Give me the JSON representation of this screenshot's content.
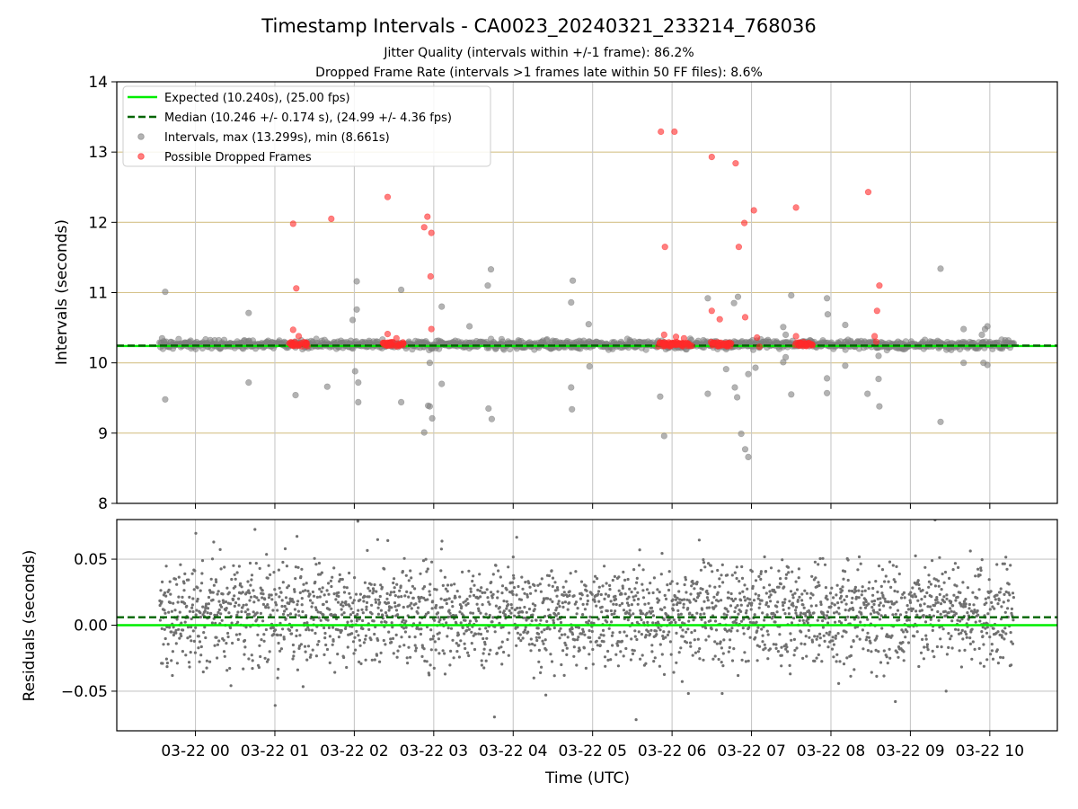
{
  "chart_data": {
    "type": "scatter",
    "title": "Timestamp Intervals - CA0023_20240321_233214_768036",
    "subtitles": [
      "Jitter Quality (intervals within +/-1 frame): 86.2%",
      "Dropped Frame Rate (intervals >1 frames late within 50 FF files): 8.6%"
    ],
    "xlabel": "Time (UTC)",
    "x_ticks": [
      "03-22 00",
      "03-22 01",
      "03-22 02",
      "03-22 03",
      "03-22 04",
      "03-22 05",
      "03-22 06",
      "03-22 07",
      "03-22 08",
      "03-22 09",
      "03-22 10"
    ],
    "x_range_hours": [
      -0.99,
      10.85
    ],
    "x_data_range_hours": [
      -0.45,
      10.3
    ],
    "top": {
      "ylabel": "Intervals (seconds)",
      "ylim": [
        8,
        14
      ],
      "y_ticks": [
        "8",
        "9",
        "10",
        "11",
        "12",
        "13",
        "14"
      ],
      "legend_position": "top-left",
      "legend": [
        "Expected (10.240s), (25.00 fps)",
        "Median (10.246 +/- 0.174 s), (24.99 +/- 4.36 fps)",
        "Intervals, max (13.299s), min (8.661s)",
        "Possible Dropped Frames"
      ],
      "expected": 10.24,
      "median": 10.246,
      "colors": {
        "expected": "#00ee00",
        "median": "#006400",
        "intervals": "#808080",
        "dropped": "#ff2a2a",
        "hgrid": "#d6c38a",
        "vgrid": "#c8c8c8"
      },
      "outliers": [
        [
          -0.38,
          11.01
        ],
        [
          -0.38,
          9.48
        ],
        [
          -0.42,
          10.35
        ],
        [
          0.67,
          10.71
        ],
        [
          0.67,
          9.72
        ],
        [
          1.26,
          9.54
        ],
        [
          1.66,
          9.66
        ],
        [
          1.98,
          10.61
        ],
        [
          2.03,
          11.16
        ],
        [
          2.03,
          10.76
        ],
        [
          2.05,
          9.72
        ],
        [
          2.05,
          9.44
        ],
        [
          2.01,
          9.88
        ],
        [
          2.59,
          11.04
        ],
        [
          2.59,
          9.44
        ],
        [
          2.88,
          9.01
        ],
        [
          2.93,
          9.39
        ],
        [
          2.98,
          9.21
        ],
        [
          2.95,
          9.38
        ],
        [
          2.95,
          10.0
        ],
        [
          3.1,
          10.8
        ],
        [
          3.1,
          9.7
        ],
        [
          3.45,
          10.52
        ],
        [
          3.68,
          11.1
        ],
        [
          3.72,
          11.33
        ],
        [
          3.69,
          9.35
        ],
        [
          3.73,
          9.2
        ],
        [
          4.75,
          11.17
        ],
        [
          4.73,
          10.86
        ],
        [
          4.73,
          9.65
        ],
        [
          4.74,
          9.34
        ],
        [
          4.95,
          10.55
        ],
        [
          4.96,
          9.95
        ],
        [
          5.85,
          9.52
        ],
        [
          5.9,
          8.96
        ],
        [
          6.45,
          10.92
        ],
        [
          6.45,
          9.56
        ],
        [
          6.68,
          9.91
        ],
        [
          6.78,
          10.85
        ],
        [
          6.83,
          10.94
        ],
        [
          6.79,
          9.65
        ],
        [
          6.82,
          9.51
        ],
        [
          6.87,
          8.99
        ],
        [
          6.92,
          8.77
        ],
        [
          6.96,
          8.66
        ],
        [
          6.96,
          9.84
        ],
        [
          7.05,
          9.93
        ],
        [
          7.4,
          10.51
        ],
        [
          7.43,
          10.4
        ],
        [
          7.43,
          10.08
        ],
        [
          7.4,
          10.01
        ],
        [
          7.5,
          10.96
        ],
        [
          7.5,
          9.55
        ],
        [
          7.95,
          10.92
        ],
        [
          7.96,
          10.69
        ],
        [
          7.95,
          9.78
        ],
        [
          7.95,
          9.57
        ],
        [
          8.18,
          10.54
        ],
        [
          8.18,
          9.96
        ],
        [
          8.46,
          9.56
        ],
        [
          8.6,
          9.77
        ],
        [
          8.61,
          9.38
        ],
        [
          8.6,
          10.1
        ],
        [
          9.38,
          11.34
        ],
        [
          9.38,
          9.16
        ],
        [
          9.67,
          10.48
        ],
        [
          9.67,
          10.0
        ],
        [
          9.94,
          10.48
        ],
        [
          9.97,
          10.52
        ],
        [
          9.9,
          10.4
        ],
        [
          9.97,
          9.97
        ],
        [
          9.92,
          10.0
        ]
      ],
      "dropped": [
        [
          1.23,
          11.98
        ],
        [
          1.27,
          11.06
        ],
        [
          1.23,
          10.47
        ],
        [
          1.3,
          10.38
        ],
        [
          1.71,
          12.05
        ],
        [
          2.42,
          12.36
        ],
        [
          2.42,
          10.41
        ],
        [
          2.53,
          10.35
        ],
        [
          2.88,
          11.93
        ],
        [
          2.92,
          12.08
        ],
        [
          2.97,
          11.85
        ],
        [
          2.96,
          11.23
        ],
        [
          2.97,
          10.48
        ],
        [
          5.86,
          13.29
        ],
        [
          6.03,
          13.29
        ],
        [
          5.91,
          11.65
        ],
        [
          5.9,
          10.4
        ],
        [
          6.05,
          10.37
        ],
        [
          6.15,
          10.35
        ],
        [
          6.5,
          12.93
        ],
        [
          6.8,
          12.84
        ],
        [
          6.84,
          11.65
        ],
        [
          6.91,
          11.99
        ],
        [
          7.03,
          12.17
        ],
        [
          6.5,
          10.74
        ],
        [
          6.6,
          10.62
        ],
        [
          6.92,
          10.65
        ],
        [
          7.07,
          10.36
        ],
        [
          7.1,
          10.23
        ],
        [
          7.56,
          12.21
        ],
        [
          7.56,
          10.38
        ],
        [
          8.47,
          12.43
        ],
        [
          8.61,
          11.1
        ],
        [
          8.58,
          10.74
        ],
        [
          8.55,
          10.38
        ],
        [
          8.57,
          10.3
        ]
      ],
      "dropped_clusters": [
        [
          1.18,
          1.43
        ],
        [
          2.35,
          2.62
        ],
        [
          5.82,
          6.28
        ],
        [
          6.48,
          6.75
        ],
        [
          7.55,
          7.78
        ]
      ]
    },
    "bottom": {
      "ylabel": "Residuals (seconds)",
      "ylim": [
        -0.08,
        0.08
      ],
      "y_ticks": [
        "−0.05",
        "0.00",
        "0.05"
      ],
      "y_tick_values": [
        -0.05,
        0.0,
        0.05
      ],
      "expected": 0.0,
      "median": 0.006
    }
  }
}
